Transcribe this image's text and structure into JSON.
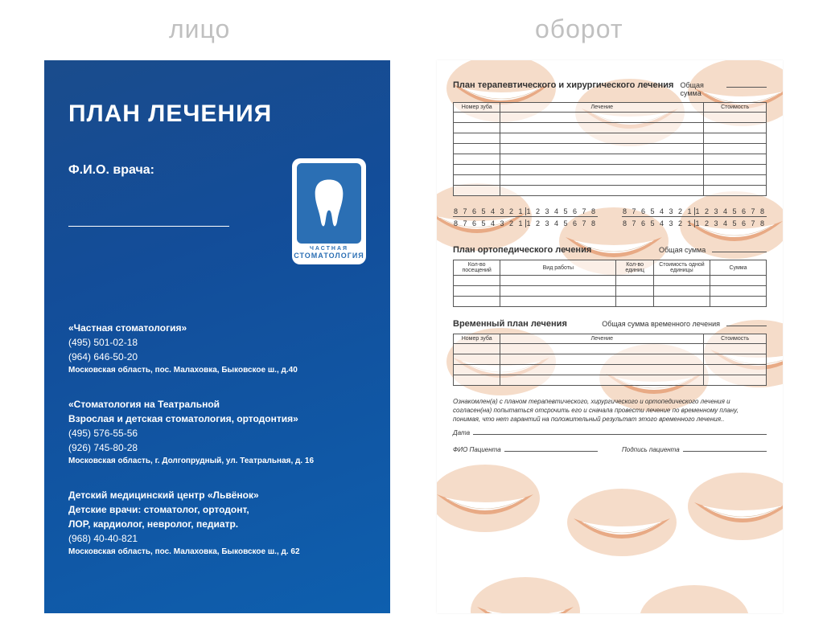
{
  "labels": {
    "front": "лицо",
    "back": "оборот"
  },
  "front": {
    "title": "ПЛАН ЛЕЧЕНИЯ",
    "doctor_label": "Ф.И.О. врача:",
    "logo": {
      "small": "ЧАСТНАЯ",
      "big": "СТОМАТОЛОГИЯ"
    },
    "clinics": [
      {
        "name": "«Частная стоматология»",
        "phones": [
          "(495) 501-02-18",
          "(964) 646-50-20"
        ],
        "address": "Московская область, пос. Малаховка, Быковское ш., д.40"
      },
      {
        "name": "«Стоматология на Театральной\nВзрослая и детская стоматология, ортодонтия»",
        "phones": [
          "(495) 576-55-56",
          "(926) 745-80-28"
        ],
        "address": "Московская область, г. Долгопрудный, ул. Театральная, д. 16"
      },
      {
        "name": "Детский медицинский центр «Львёнок»\nДетские врачи: стоматолог, ортодонт,\nЛОР, кардиолог, невролог, педиатр.",
        "phones": [
          "(968) 40-40-821"
        ],
        "address": "Московская область, пос. Малаховка, Быковское ш., д. 62"
      }
    ],
    "colors": {
      "grad_from": "#1a4c8c",
      "grad_to": "#0e5fae",
      "text": "#ffffff"
    }
  },
  "back": {
    "section1": {
      "title": "План терапевтического и хирургического лечения",
      "sum_label": "Общая сумма",
      "columns": [
        "Номер зуба",
        "Лечение",
        "Стоимость"
      ],
      "col_widths": [
        "15%",
        "65%",
        "20%"
      ],
      "rows": 8
    },
    "tooth_numbers": {
      "left": "8 7 6 5 4 3 2 1",
      "right": "1 2 3 4 5 6 7 8"
    },
    "section2": {
      "title": "План ортопедического лечения",
      "sum_label": "Общая сумма",
      "columns": [
        "Кол-во посещений",
        "Вид работы",
        "Кол-во единиц",
        "Стоимость одной единицы",
        "Сумма"
      ],
      "col_widths": [
        "15%",
        "37%",
        "12%",
        "18%",
        "18%"
      ],
      "rows": 3
    },
    "section3": {
      "title": "Временный план лечения",
      "sum_label": "Общая сумма временного лечения",
      "columns": [
        "Номер зуба",
        "Лечение",
        "Стоимость"
      ],
      "col_widths": [
        "15%",
        "65%",
        "20%"
      ],
      "rows": 4
    },
    "consent": "Ознакомлен(а) с планом терапевтического, хирургического и ортопедического лечения и согласен(на) попытаться отсрочить его и сначала провести лечение по временному плану, понимая, что нет гарантий на положительный результат этого временного лечения..",
    "date_label": "Дата",
    "sig1": "ФИО Пациента",
    "sig2": "Подпись пациента",
    "bg_color": "#f5d9c4",
    "bg_lip": "#e6a178",
    "bg_tooth": "#ffffff"
  }
}
